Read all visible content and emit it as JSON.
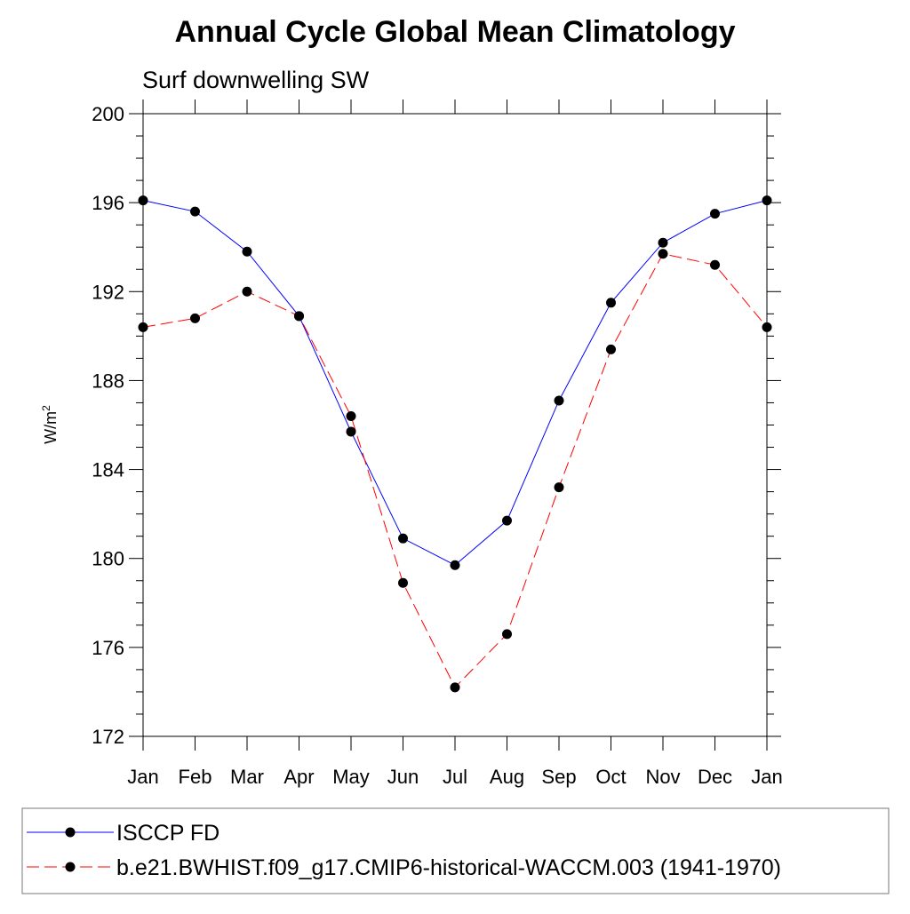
{
  "chart_data": {
    "type": "line",
    "title": "Annual Cycle Global Mean Climatology",
    "subtitle": "Surf downwelling SW",
    "ylabel": "W/m",
    "ylabel_sup": "2",
    "xlabel": "",
    "ylim": [
      172,
      200
    ],
    "yticks": [
      172,
      176,
      180,
      184,
      188,
      192,
      196,
      200
    ],
    "categories": [
      "Jan",
      "Feb",
      "Mar",
      "Apr",
      "May",
      "Jun",
      "Jul",
      "Aug",
      "Sep",
      "Oct",
      "Nov",
      "Dec",
      "Jan"
    ],
    "grid": false,
    "legend_position": "bottom",
    "series": [
      {
        "name": "ISCCP FD",
        "color": "#0000ff",
        "style": "solid",
        "marker": "filled-circle",
        "values": [
          196.1,
          195.6,
          193.8,
          190.9,
          185.7,
          180.9,
          179.7,
          181.7,
          187.1,
          191.5,
          194.2,
          195.5,
          196.1
        ]
      },
      {
        "name": "b.e21.BWHIST.f09_g17.CMIP6-historical-WACCM.003 (1941-1970)",
        "color": "#ff0000",
        "style": "dashed",
        "marker": "filled-circle",
        "values": [
          190.4,
          190.8,
          192.0,
          190.9,
          186.4,
          178.9,
          174.2,
          176.6,
          183.2,
          189.4,
          193.7,
          193.2,
          190.4
        ]
      }
    ]
  }
}
